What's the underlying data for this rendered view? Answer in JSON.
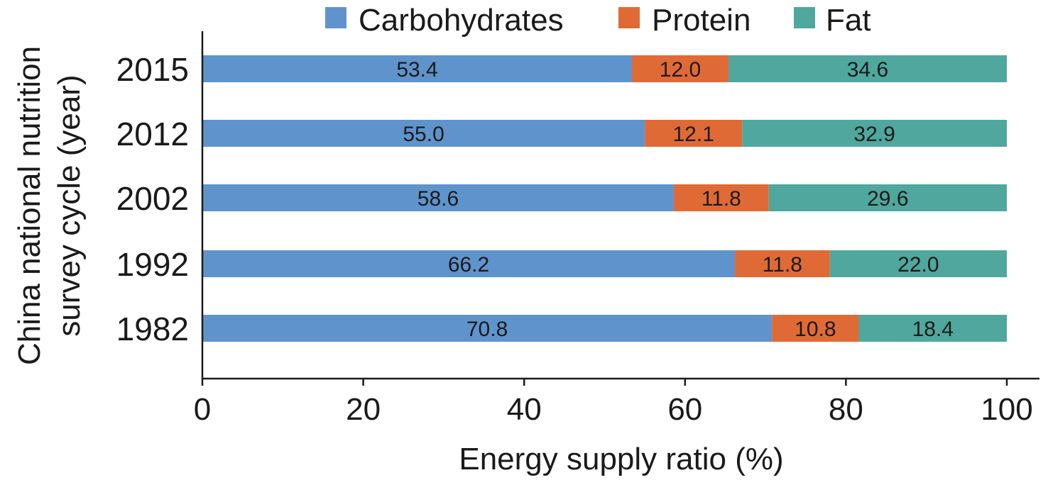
{
  "chart_data": {
    "type": "bar",
    "orientation": "horizontal",
    "stacked": true,
    "categories": [
      "2015",
      "2012",
      "2002",
      "1992",
      "1982"
    ],
    "series": [
      {
        "name": "Carbohydrates",
        "color": "#5f93cc",
        "values": [
          53.4,
          55.0,
          58.6,
          66.2,
          70.8
        ]
      },
      {
        "name": "Protein",
        "color": "#e06a35",
        "values": [
          12.0,
          12.1,
          11.8,
          11.8,
          10.8
        ]
      },
      {
        "name": "Fat",
        "color": "#4fa79d",
        "values": [
          34.6,
          32.9,
          29.6,
          22.0,
          18.4
        ]
      }
    ],
    "data_labels": [
      [
        "53.4",
        "55.0",
        "58.6",
        "66.2",
        "70.8"
      ],
      [
        "12.0",
        "12.1",
        "11.8",
        "11.8",
        "10.8"
      ],
      [
        "34.6",
        "32.9",
        "29.6",
        "22.0",
        "18.4"
      ]
    ],
    "xlabel": "Energy supply ratio (%)",
    "ylabel_lines": [
      "China national nutrition",
      "survey cycle (year)"
    ],
    "xlim": [
      0,
      100
    ],
    "xticks": [
      0,
      20,
      40,
      60,
      80,
      100
    ],
    "grid": false,
    "legend_position": "top"
  }
}
